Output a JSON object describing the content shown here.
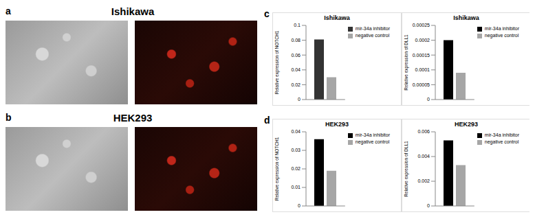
{
  "panels": [
    {
      "label": "a",
      "title": "Ishikawa"
    },
    {
      "label": "b",
      "title": "HEK293"
    }
  ],
  "chart_panels": [
    "c",
    "d"
  ],
  "chart_data": [
    {
      "type": "bar",
      "title": "Ishikawa",
      "y_label": "Relative expression of NOTCH1",
      "categories": [
        null
      ],
      "series": [
        {
          "name": "mir-34a inhibitor",
          "color": "#333333",
          "values": [
            0.081
          ]
        },
        {
          "name": "negative control",
          "color": "#a6a6a6",
          "values": [
            0.03
          ]
        }
      ],
      "ylim": [
        0,
        0.1
      ],
      "yticks": [
        0,
        0.02,
        0.04,
        0.06,
        0.08,
        0.1
      ],
      "tick_labels": "y",
      "legend": "upper right"
    },
    {
      "type": "bar",
      "title": "Ishikawa",
      "y_label": "Relative expression of DLL1",
      "categories": [
        null
      ],
      "series": [
        {
          "name": "mir-34a inhibitor",
          "color": "#000000",
          "values": [
            0.0002
          ]
        },
        {
          "name": "negative control",
          "color": "#a6a6a6",
          "values": [
            9e-05
          ]
        }
      ],
      "ylim": [
        0,
        0.00025
      ],
      "yticks": [
        0,
        5e-05,
        0.0001,
        0.00015,
        0.0002,
        0.00025
      ],
      "tick_labels": "y",
      "legend": "upper right"
    },
    {
      "type": "bar",
      "title": "HEK293",
      "y_label": "Relative expression of NOTCH1",
      "categories": [
        null
      ],
      "series": [
        {
          "name": "mir-34a inhibitor",
          "color": "#000000",
          "values": [
            0.036
          ]
        },
        {
          "name": "negative control",
          "color": "#a6a6a6",
          "values": [
            0.019
          ]
        }
      ],
      "ylim": [
        0,
        0.04
      ],
      "yticks": [
        0,
        0.01,
        0.02,
        0.03,
        0.04
      ],
      "tick_labels": "y",
      "legend": "upper right"
    },
    {
      "type": "bar",
      "title": "HEK293",
      "y_label": "Relative expression of DLL1",
      "categories": [
        null
      ],
      "series": [
        {
          "name": "mir-34a inhibitor",
          "color": "#000000",
          "values": [
            0.0053
          ]
        },
        {
          "name": "negative control",
          "color": "#a6a6a6",
          "values": [
            0.0033
          ]
        }
      ],
      "ylim": [
        0,
        0.006
      ],
      "yticks": [
        0,
        0.002,
        0.004,
        0.006
      ],
      "tick_labels": "y",
      "legend": "upper right"
    }
  ]
}
